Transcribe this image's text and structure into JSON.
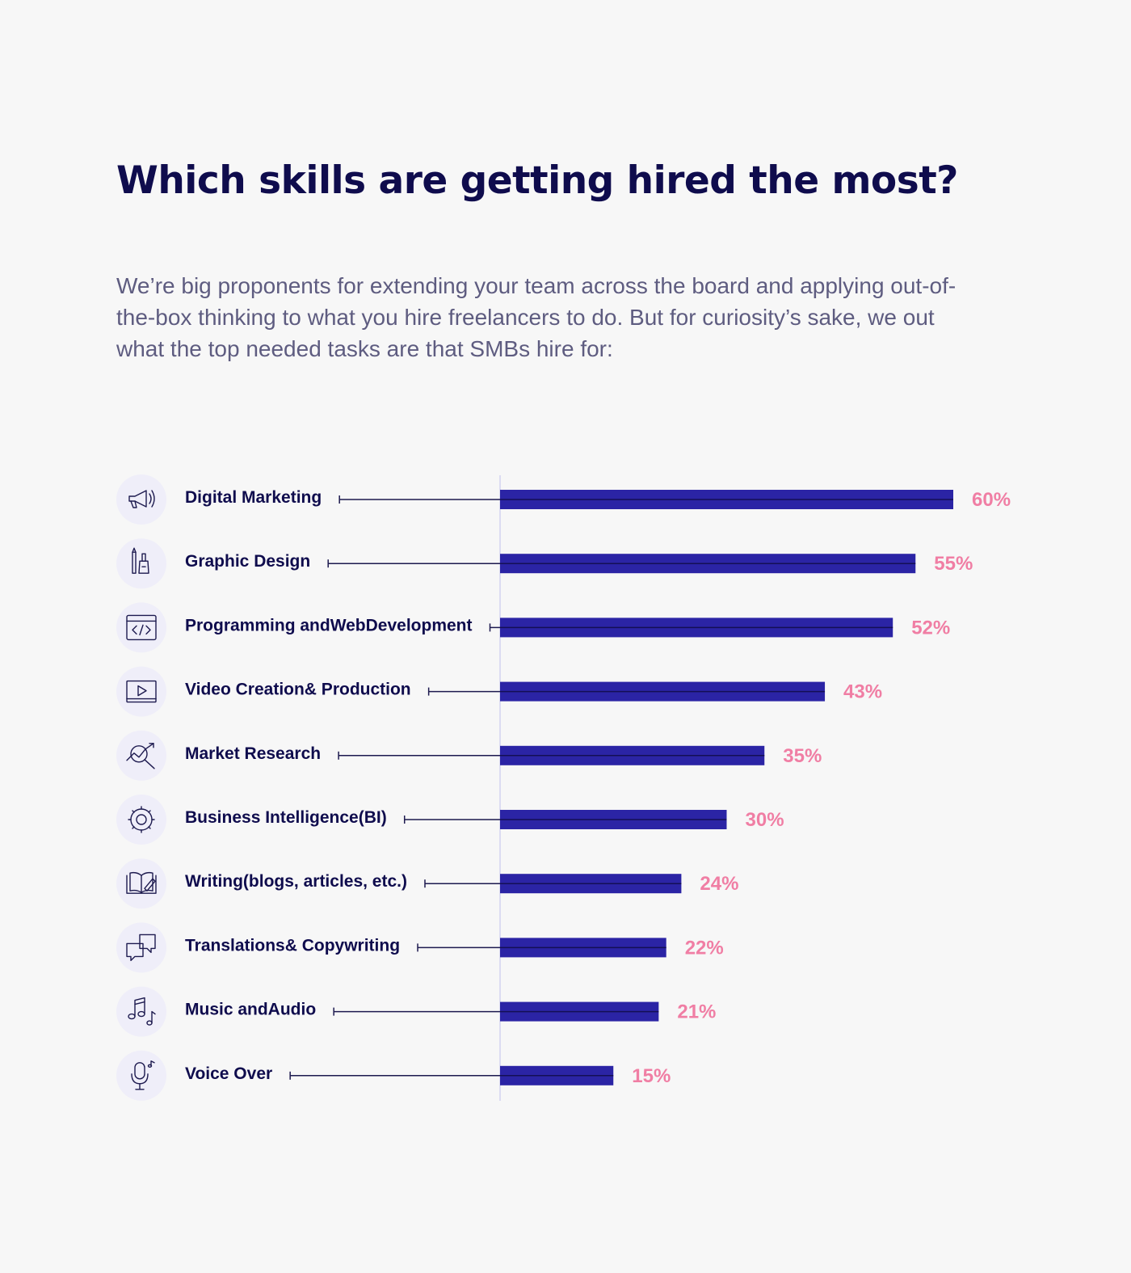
{
  "header": {
    "title": "Which skills are getting hired the most?",
    "intro": "We’re big proponents for extending your team across the board and applying out-of-the-box thinking to what you hire freelancers to do. But for curiosity’s sake, we out what the top needed tasks are that SMBs hire for:"
  },
  "colors": {
    "bar": "#2b24a5",
    "value_label": "#f07ea4",
    "title": "#0f0c4d",
    "icon_background": "#efeef9"
  },
  "chart_data": {
    "type": "bar",
    "orientation": "horizontal",
    "categories": [
      "Digital Marketing",
      "Graphic Design",
      "Programming andWebDevelopment",
      "Video Creation& Production",
      "Market Research",
      "Business Intelligence(BI)",
      "Writing(blogs, articles, etc.)",
      "Translations& Copywriting",
      "Music andAudio",
      "Voice Over"
    ],
    "values": [
      60,
      55,
      52,
      43,
      35,
      30,
      24,
      22,
      21,
      15
    ],
    "value_labels": [
      "60%",
      "55%",
      "52%",
      "43%",
      "35%",
      "30%",
      "24%",
      "22%",
      "21%",
      "15%"
    ],
    "icons": [
      "megaphone-icon",
      "pencil-brush-icon",
      "code-window-icon",
      "video-play-icon",
      "magnifier-chart-icon",
      "brain-gear-icon",
      "book-pencil-icon",
      "translate-bubbles-icon",
      "music-notes-icon",
      "microphone-icon"
    ],
    "xlim": [
      0,
      60
    ],
    "grid": false,
    "legend": "none"
  }
}
